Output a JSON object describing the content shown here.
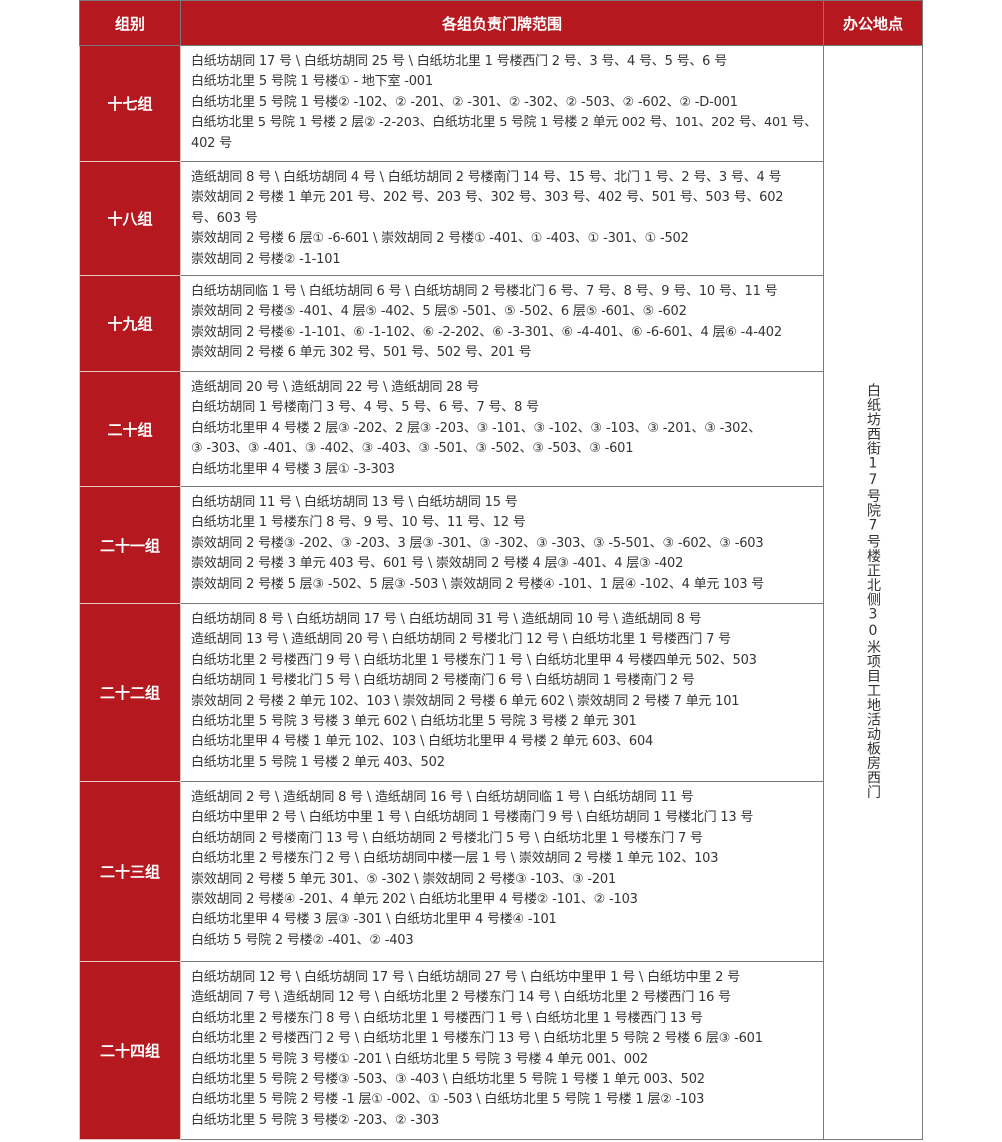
{
  "header": {
    "group": "组别",
    "range": "各组负责门牌范围",
    "office": "办公地点"
  },
  "office_location": "白纸坊西街17号院7号楼正北侧30米项目工地活动板房西门",
  "rows": [
    {
      "name": "十七组",
      "lines": [
        "白纸坊胡同 17 号 \\ 白纸坊胡同 25 号 \\ 白纸坊北里 1 号楼西门 2 号、3 号、4 号、5 号、6 号",
        "白纸坊北里 5 号院 1 号楼① - 地下室 -001",
        "白纸坊北里 5 号院 1 号楼② -102、② -201、② -301、② -302、② -503、② -602、② -D-001",
        "白纸坊北里 5 号院 1 号楼 2 层② -2-203、白纸坊北里 5 号院 1 号楼 2 单元 002 号、101、202 号、401 号、",
        "402 号"
      ]
    },
    {
      "name": "十八组",
      "lines": [
        "造纸胡同 8 号 \\ 白纸坊胡同 4 号 \\ 白纸坊胡同 2 号楼南门 14 号、15 号、北门 1 号、2 号、3 号、4 号",
        "崇效胡同 2 号楼 1 单元 201 号、202 号、203 号、302 号、303 号、402 号、501 号、503 号、602",
        "号、603 号",
        "崇效胡同 2 号楼 6 层① -6-601 \\ 崇效胡同 2 号楼① -401、① -403、① -301、① -502",
        "崇效胡同 2 号楼② -1-101"
      ]
    },
    {
      "name": "十九组",
      "lines": [
        "白纸坊胡同临 1 号 \\ 白纸坊胡同 6 号 \\ 白纸坊胡同 2 号楼北门 6 号、7 号、8 号、9 号、10 号、11 号",
        "崇效胡同 2 号楼⑤ -401、4 层⑤ -402、5 层⑤ -501、⑤ -502、6 层⑤ -601、⑤ -602",
        "崇效胡同 2 号楼⑥ -1-101、⑥ -1-102、⑥ -2-202、⑥ -3-301、⑥ -4-401、⑥ -6-601、4 层⑥ -4-402",
        "崇效胡同 2 号楼 6 单元 302 号、501 号、502 号、201 号"
      ]
    },
    {
      "name": "二十组",
      "lines": [
        "造纸胡同 20 号 \\ 造纸胡同 22 号 \\ 造纸胡同 28 号",
        "白纸坊胡同 1 号楼南门 3 号、4 号、5 号、6 号、7 号、8 号",
        "白纸坊北里甲 4 号楼 2 层③ -202、2 层③ -203、③ -101、③ -102、③ -103、③ -201、③ -302、",
        "③ -303、③ -401、③ -402、③ -403、③ -501、③ -502、③ -503、③ -601",
        "白纸坊北里甲 4 号楼 3 层① -3-303"
      ]
    },
    {
      "name": "二十一组",
      "lines": [
        "白纸坊胡同 11 号 \\ 白纸坊胡同 13 号 \\ 白纸坊胡同 15 号",
        "白纸坊北里 1 号楼东门 8 号、9 号、10 号、11 号、12 号",
        "崇效胡同 2 号楼③ -202、③ -203、3 层③ -301、③ -302、③ -303、③ -5-501、③ -602、③ -603",
        "崇效胡同 2 号楼 3 单元 403 号、601 号 \\ 崇效胡同 2 号楼 4 层③ -401、4 层③ -402",
        "崇效胡同 2 号楼 5 层③ -502、5 层③ -503 \\ 崇效胡同 2 号楼④ -101、1 层④ -102、4 单元 103 号"
      ]
    },
    {
      "name": "二十二组",
      "lines": [
        "白纸坊胡同 8 号 \\ 白纸坊胡同 17 号 \\ 白纸坊胡同 31 号 \\ 造纸胡同 10 号 \\ 造纸胡同 8 号",
        "造纸胡同 13 号 \\ 造纸胡同 20 号 \\ 白纸坊胡同 2 号楼北门 12 号 \\ 白纸坊北里 1 号楼西门 7 号",
        "白纸坊北里 2 号楼西门 9 号 \\ 白纸坊北里 1 号楼东门 1 号 \\ 白纸坊北里甲 4 号楼四单元 502、503",
        "白纸坊胡同 1 号楼北门 5 号 \\ 白纸坊胡同 2 号楼南门 6 号 \\ 白纸坊胡同 1 号楼南门 2 号",
        "崇效胡同 2 号楼 2 单元 102、103 \\ 崇效胡同 2 号楼 6 单元 602 \\ 崇效胡同 2 号楼 7 单元 101",
        "白纸坊北里 5 号院 3 号楼 3 单元 602 \\ 白纸坊北里 5 号院 3 号楼 2 单元 301",
        "白纸坊北里甲 4 号楼 1 单元 102、103 \\ 白纸坊北里甲 4 号楼 2 单元 603、604",
        "白纸坊北里 5 号院 1 号楼 2 单元 403、502"
      ]
    },
    {
      "name": "二十三组",
      "lines": [
        "造纸胡同 2 号 \\ 造纸胡同 8 号 \\ 造纸胡同 16 号 \\ 白纸坊胡同临 1 号 \\ 白纸坊胡同 11 号",
        "白纸坊中里甲 2 号 \\ 白纸坊中里 1 号 \\ 白纸坊胡同 1 号楼南门 9 号 \\ 白纸坊胡同 1 号楼北门 13 号",
        "白纸坊胡同 2 号楼南门 13 号 \\ 白纸坊胡同 2 号楼北门 5 号 \\ 白纸坊北里 1 号楼东门 7 号",
        "白纸坊北里 2 号楼东门 2 号 \\ 白纸坊胡同中楼一层 1 号 \\ 崇效胡同 2 号楼 1 单元 102、103",
        "崇效胡同 2 号楼 5 单元 301、⑤ -302 \\ 崇效胡同 2 号楼③ -103、③ -201",
        "崇效胡同 2 号楼④ -201、4 单元 202 \\ 白纸坊北里甲 4 号楼② -101、② -103",
        "白纸坊北里甲 4 号楼 3 层③ -301 \\ 白纸坊北里甲 4 号楼④ -101",
        "白纸坊 5 号院 2 号楼② -401、② -403"
      ]
    },
    {
      "name": "二十四组",
      "lines": [
        "白纸坊胡同 12 号 \\ 白纸坊胡同 17 号 \\ 白纸坊胡同 27 号 \\ 白纸坊中里甲 1 号 \\ 白纸坊中里 2 号",
        "造纸胡同 7 号 \\ 造纸胡同 12 号 \\ 白纸坊北里 2 号楼东门 14 号 \\ 白纸坊北里 2 号楼西门 16 号",
        "白纸坊北里 2 号楼东门 8 号 \\ 白纸坊北里 1 号楼西门 1 号 \\ 白纸坊北里 1 号楼西门 13 号",
        "白纸坊北里 2 号楼西门 2 号 \\ 白纸坊北里 1 号楼东门 13 号 \\ 白纸坊北里 5 号院 2 号楼 6 层③ -601",
        "白纸坊北里 5 号院 3 号楼① -201 \\ 白纸坊北里 5 号院 3 号楼 4 单元 001、002",
        "白纸坊北里 5 号院 2 号楼③ -503、③ -403 \\ 白纸坊北里 5 号院 1 号楼 1 单元 003、502",
        "白纸坊北里 5 号院 2 号楼 -1 层① -002、① -503 \\ 白纸坊北里 5 号院 1 号楼 1 层② -103",
        "白纸坊北里 5 号院 3 号楼② -203、② -303"
      ]
    }
  ]
}
